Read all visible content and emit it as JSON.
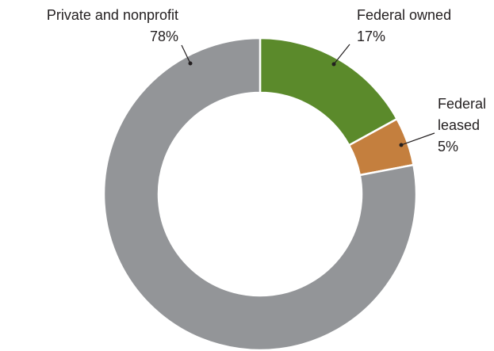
{
  "chart_data": {
    "type": "donut",
    "categories": [
      "Federal owned",
      "Federal leased",
      "Private and nonprofit"
    ],
    "values": [
      17,
      5,
      78
    ],
    "value_labels": [
      "17%",
      "5%",
      "78%"
    ],
    "colors": [
      "#5b8a2b",
      "#c47f3e",
      "#939598"
    ]
  }
}
